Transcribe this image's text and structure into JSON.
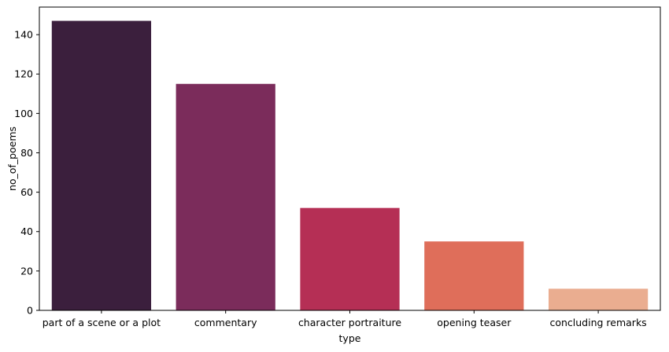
{
  "chart_data": {
    "type": "bar",
    "title": "",
    "xlabel": "type",
    "ylabel": "no_of_poems",
    "categories": [
      "part of a scene or a plot",
      "commentary",
      "character portraiture",
      "opening teaser",
      "concluding remarks"
    ],
    "values": [
      147,
      115,
      52,
      35,
      11
    ],
    "colors": [
      "#3b1f3d",
      "#7b2c5b",
      "#b52f55",
      "#df6e5a",
      "#eaad90"
    ],
    "ylim": [
      0,
      154
    ],
    "yticks": [
      0,
      20,
      40,
      60,
      80,
      100,
      120,
      140
    ],
    "grid": false,
    "legend": false
  }
}
